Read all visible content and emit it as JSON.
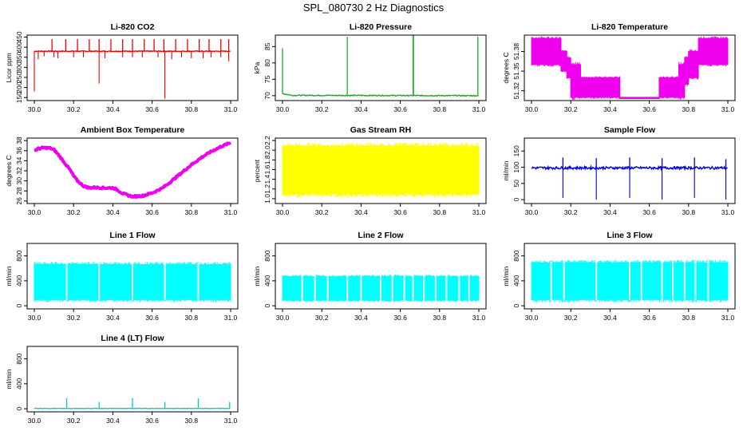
{
  "figure": {
    "title": "SPL_080730  2 Hz Diagnostics"
  },
  "chart_data": [
    {
      "id": "co2",
      "type": "line",
      "title": "Li-820 CO2",
      "ylabel": "Licor ppm",
      "xlabel": "",
      "xlim": [
        30.0,
        31.0
      ],
      "ylim": [
        135,
        460
      ],
      "xticks": [
        30.0,
        30.2,
        30.4,
        30.6,
        30.8,
        31.0
      ],
      "xtick_labels": [
        "30.0",
        "30.2",
        "30.4",
        "30.6",
        "30.8",
        "31.0"
      ],
      "yticks": [
        150,
        200,
        250,
        300,
        350,
        400,
        450
      ],
      "ytick_labels": [
        "150",
        "200",
        "250",
        "300",
        "350",
        "400",
        "450"
      ],
      "color": "#ee0000",
      "render": "baseline",
      "baseline": {
        "x": [
          30.0,
          31.0
        ],
        "y": [
          380,
          380
        ],
        "noise": 4
      },
      "spikes_up": [
        [
          30.09,
          440
        ],
        [
          30.16,
          440
        ],
        [
          30.22,
          440
        ],
        [
          30.28,
          440
        ],
        [
          30.33,
          440
        ],
        [
          30.39,
          440
        ],
        [
          30.45,
          440
        ],
        [
          30.5,
          440
        ],
        [
          30.56,
          440
        ],
        [
          30.61,
          440
        ],
        [
          30.66,
          440
        ],
        [
          30.72,
          440
        ],
        [
          30.78,
          440
        ],
        [
          30.84,
          440
        ],
        [
          30.89,
          440
        ],
        [
          30.95,
          440
        ],
        [
          30.99,
          440
        ]
      ],
      "spikes_down": [
        [
          30.0,
          180
        ],
        [
          30.02,
          340
        ],
        [
          30.05,
          355
        ],
        [
          30.1,
          350
        ],
        [
          30.12,
          345
        ],
        [
          30.2,
          350
        ],
        [
          30.25,
          350
        ],
        [
          30.33,
          220
        ],
        [
          30.36,
          345
        ],
        [
          30.45,
          350
        ],
        [
          30.5,
          350
        ],
        [
          30.55,
          350
        ],
        [
          30.63,
          350
        ],
        [
          30.665,
          145
        ],
        [
          30.7,
          340
        ],
        [
          30.75,
          350
        ],
        [
          30.8,
          345
        ],
        [
          30.86,
          345
        ],
        [
          30.9,
          350
        ],
        [
          30.95,
          350
        ],
        [
          30.99,
          330
        ]
      ]
    },
    {
      "id": "pressure",
      "type": "line",
      "title": "Li-820 Pressure",
      "ylabel": "kPa",
      "xlabel": "",
      "xlim": [
        30.0,
        31.0
      ],
      "ylim": [
        68.5,
        88.5
      ],
      "xticks": [
        30.0,
        30.2,
        30.4,
        30.6,
        30.8,
        31.0
      ],
      "xtick_labels": [
        "30.0",
        "30.2",
        "30.4",
        "30.6",
        "30.8",
        "31.0"
      ],
      "yticks": [
        70,
        75,
        80,
        85
      ],
      "ytick_labels": [
        "70",
        "75",
        "80",
        "85"
      ],
      "color": "#22aa22",
      "render": "baseline",
      "baseline": {
        "x": [
          30.0,
          30.05,
          31.0
        ],
        "y": [
          70.6,
          70.1,
          70.0
        ],
        "noise": 0.3
      },
      "spikes_up": [
        [
          30.0,
          84.5
        ],
        [
          30.33,
          88.0
        ],
        [
          30.665,
          88.5
        ],
        [
          30.667,
          88.5
        ],
        [
          30.995,
          88.0
        ]
      ],
      "spikes_down": []
    },
    {
      "id": "licor-temp",
      "type": "area",
      "title": "Li-820 Temperature",
      "ylabel": "degrees C",
      "xlabel": "",
      "xlim": [
        30.0,
        31.0
      ],
      "ylim": [
        51.305,
        51.405
      ],
      "xticks": [
        30.0,
        30.2,
        30.4,
        30.6,
        30.8,
        31.0
      ],
      "xtick_labels": [
        "30.0",
        "30.2",
        "30.4",
        "30.6",
        "30.8",
        "31.0"
      ],
      "yticks": [
        51.32,
        51.35,
        51.38
      ],
      "ytick_labels": [
        "51.32",
        "51.35",
        "51.38"
      ],
      "color": "#ee00ee",
      "render": "band",
      "band": {
        "x": [
          30.0,
          30.15,
          30.15,
          30.18,
          30.18,
          30.2,
          30.2,
          30.25,
          30.25,
          30.35,
          30.35,
          30.45,
          30.45,
          30.55,
          30.55,
          30.65,
          30.65,
          30.75,
          30.75,
          30.78,
          30.78,
          30.8,
          30.8,
          30.85,
          30.85,
          31.0
        ],
        "lo": [
          51.36,
          51.36,
          51.35,
          51.35,
          51.34,
          51.34,
          51.31,
          51.31,
          51.31,
          51.31,
          51.31,
          51.31,
          51.308,
          51.308,
          51.308,
          51.308,
          51.31,
          51.31,
          51.31,
          51.31,
          51.33,
          51.33,
          51.34,
          51.34,
          51.36,
          51.36
        ],
        "hi": [
          51.4,
          51.4,
          51.38,
          51.38,
          51.37,
          51.37,
          51.36,
          51.36,
          51.34,
          51.34,
          51.34,
          51.34,
          51.31,
          51.31,
          51.31,
          51.31,
          51.34,
          51.34,
          51.36,
          51.36,
          51.37,
          51.37,
          51.38,
          51.38,
          51.4,
          51.4
        ]
      }
    },
    {
      "id": "box-temp",
      "type": "line",
      "title": "Ambient Box Temperature",
      "ylabel": "degrees C",
      "xlabel": "",
      "xlim": [
        30.0,
        31.0
      ],
      "ylim": [
        25.5,
        38.5
      ],
      "xticks": [
        30.0,
        30.2,
        30.4,
        30.6,
        30.8,
        31.0
      ],
      "xtick_labels": [
        "30.0",
        "30.2",
        "30.4",
        "30.6",
        "30.8",
        "31.0"
      ],
      "yticks": [
        26,
        28,
        30,
        32,
        34,
        36,
        38
      ],
      "ytick_labels": [
        "26",
        "28",
        "30",
        "32",
        "34",
        "36",
        "38"
      ],
      "color": "#ee00ee",
      "render": "thick",
      "line": {
        "x": [
          30.0,
          30.02,
          30.05,
          30.08,
          30.1,
          30.12,
          30.15,
          30.18,
          30.2,
          30.22,
          30.25,
          30.28,
          30.3,
          30.35,
          30.4,
          30.42,
          30.45,
          30.48,
          30.5,
          30.55,
          30.6,
          30.65,
          30.7,
          30.75,
          30.8,
          30.85,
          30.9,
          30.95,
          31.0
        ],
        "y": [
          36.0,
          36.4,
          36.6,
          36.5,
          36.2,
          35.3,
          33.8,
          32.3,
          31.0,
          30.0,
          29.0,
          28.6,
          28.7,
          28.6,
          28.6,
          28.3,
          27.5,
          27.1,
          26.9,
          27.0,
          27.6,
          28.5,
          30.0,
          31.6,
          33.2,
          34.6,
          35.8,
          36.8,
          37.6
        ],
        "width": 4
      }
    },
    {
      "id": "rh",
      "type": "area",
      "title": "Gas Stream RH",
      "ylabel": "percent",
      "xlabel": "",
      "xlim": [
        30.0,
        31.0
      ],
      "ylim": [
        0.9,
        2.25
      ],
      "xticks": [
        30.0,
        30.2,
        30.4,
        30.6,
        30.8,
        31.0
      ],
      "xtick_labels": [
        "30.0",
        "30.2",
        "30.4",
        "30.6",
        "30.8",
        "31.0"
      ],
      "yticks": [
        1.0,
        1.2,
        1.4,
        1.6,
        1.8,
        2.0,
        2.2
      ],
      "ytick_labels": [
        "1.0",
        "1.2",
        "1.4",
        "1.6",
        "1.8",
        "2.0",
        "2.2"
      ],
      "color": "#ffff00",
      "render": "band",
      "band": {
        "x": [
          30.0,
          31.0
        ],
        "lo": [
          1.1,
          1.1
        ],
        "hi": [
          2.08,
          2.08
        ]
      }
    },
    {
      "id": "sample-flow",
      "type": "line",
      "title": "Sample Flow",
      "ylabel": "ml/min",
      "xlabel": "",
      "xlim": [
        30.0,
        31.0
      ],
      "ylim": [
        -12,
        190
      ],
      "xticks": [
        30.0,
        30.2,
        30.4,
        30.6,
        30.8,
        31.0
      ],
      "xtick_labels": [
        "30.0",
        "30.2",
        "30.4",
        "30.6",
        "30.8",
        "31.0"
      ],
      "yticks": [
        0,
        50,
        100,
        150
      ],
      "ytick_labels": [
        "0",
        "50",
        "100",
        "150"
      ],
      "color": "#0000dd",
      "render": "baseline",
      "baseline": {
        "x": [
          30.0,
          31.0
        ],
        "y": [
          98,
          98
        ],
        "noise": 8
      },
      "spikes_up": [
        [
          30.16,
          130
        ],
        [
          30.33,
          128
        ],
        [
          30.5,
          130
        ],
        [
          30.665,
          128
        ],
        [
          30.83,
          130
        ],
        [
          30.99,
          125
        ]
      ],
      "spikes_down": [
        [
          30.16,
          5
        ],
        [
          30.33,
          0
        ],
        [
          30.5,
          5
        ],
        [
          30.665,
          0
        ],
        [
          30.83,
          5
        ],
        [
          30.99,
          0
        ]
      ]
    },
    {
      "id": "line1",
      "type": "area",
      "title": "Line 1 Flow",
      "ylabel": "ml/min",
      "xlabel": "",
      "xlim": [
        30.0,
        31.0
      ],
      "ylim": [
        -50,
        1000
      ],
      "xticks": [
        30.0,
        30.2,
        30.4,
        30.6,
        30.8,
        31.0
      ],
      "xtick_labels": [
        "30.0",
        "30.2",
        "30.4",
        "30.6",
        "30.8",
        "31.0"
      ],
      "yticks": [
        0,
        400,
        800
      ],
      "ytick_labels": [
        "0",
        "400",
        "800"
      ],
      "color": "#00ffff",
      "render": "band",
      "band": {
        "x": [
          30.0,
          31.0
        ],
        "lo": [
          100,
          100
        ],
        "hi": [
          660,
          660
        ]
      },
      "gaps": [
        30.165,
        30.33,
        30.5,
        30.665,
        30.835
      ]
    },
    {
      "id": "line2",
      "type": "area",
      "title": "Line 2 Flow",
      "ylabel": "ml/min",
      "xlabel": "",
      "xlim": [
        30.0,
        31.0
      ],
      "ylim": [
        -50,
        1000
      ],
      "xticks": [
        30.0,
        30.2,
        30.4,
        30.6,
        30.8,
        31.0
      ],
      "xtick_labels": [
        "30.0",
        "30.2",
        "30.4",
        "30.6",
        "30.8",
        "31.0"
      ],
      "yticks": [
        0,
        400,
        800
      ],
      "ytick_labels": [
        "0",
        "400",
        "800"
      ],
      "color": "#00ffff",
      "render": "band",
      "band": {
        "x": [
          30.0,
          31.0
        ],
        "lo": [
          90,
          90
        ],
        "hi": [
          470,
          470
        ]
      },
      "gaps": [
        30.1,
        30.165,
        30.23,
        30.33,
        30.4,
        30.5,
        30.56,
        30.62,
        30.665,
        30.72,
        30.78,
        30.835,
        30.9,
        30.95
      ]
    },
    {
      "id": "line3",
      "type": "area",
      "title": "Line 3 Flow",
      "ylabel": "ml/min",
      "xlabel": "",
      "xlim": [
        30.0,
        31.0
      ],
      "ylim": [
        -50,
        1000
      ],
      "xticks": [
        30.0,
        30.2,
        30.4,
        30.6,
        30.8,
        31.0
      ],
      "xtick_labels": [
        "30.0",
        "30.2",
        "30.4",
        "30.6",
        "30.8",
        "31.0"
      ],
      "yticks": [
        0,
        400,
        800
      ],
      "ytick_labels": [
        "0",
        "400",
        "800"
      ],
      "color": "#00ffff",
      "render": "band",
      "band": {
        "x": [
          30.0,
          31.0
        ],
        "lo": [
          100,
          100
        ],
        "hi": [
          690,
          690
        ]
      },
      "gaps": [
        30.1,
        30.165,
        30.33,
        30.5,
        30.56,
        30.665,
        30.72,
        30.78,
        30.835,
        30.9
      ]
    },
    {
      "id": "line4",
      "type": "line",
      "title": "Line 4 (LT) Flow",
      "ylabel": "ml/min",
      "xlabel": "",
      "xlim": [
        30.0,
        31.0
      ],
      "ylim": [
        -50,
        1000
      ],
      "xticks": [
        30.0,
        30.2,
        30.4,
        30.6,
        30.8,
        31.0
      ],
      "xtick_labels": [
        "30.0",
        "30.2",
        "30.4",
        "30.6",
        "30.8",
        "31.0"
      ],
      "yticks": [
        0,
        400,
        800
      ],
      "ytick_labels": [
        "0",
        "400",
        "800"
      ],
      "color": "#00cccc",
      "render": "baseline",
      "baseline": {
        "x": [
          30.0,
          31.0
        ],
        "y": [
          5,
          5
        ],
        "noise": 6
      },
      "spikes_up": [
        [
          30.165,
          170
        ],
        [
          30.33,
          110
        ],
        [
          30.5,
          170
        ],
        [
          30.665,
          110
        ],
        [
          30.835,
          165
        ],
        [
          30.995,
          110
        ]
      ],
      "spikes_down": []
    }
  ]
}
